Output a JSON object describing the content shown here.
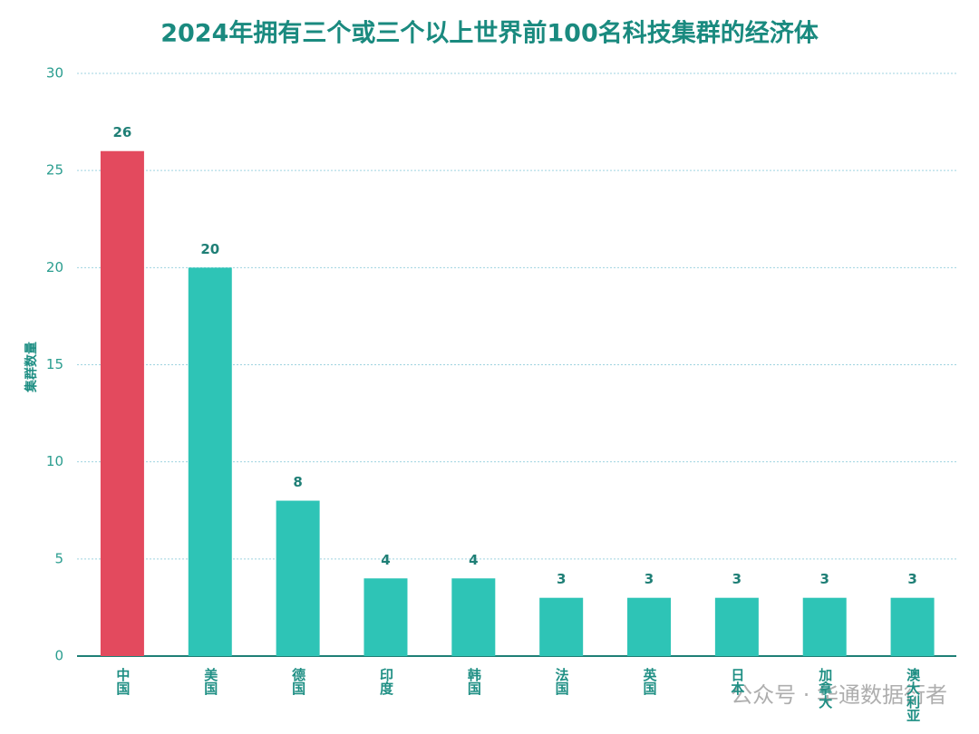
{
  "chart_data": {
    "type": "bar",
    "title": "2024年拥有三个或三个以上世界前100名科技集群的经济体",
    "y_label": "集群数量",
    "categories": [
      "中国",
      "美国",
      "德国",
      "印度",
      "韩国",
      "法国",
      "英国",
      "日本",
      "加拿大",
      "澳大利亚"
    ],
    "values": [
      26,
      20,
      8,
      4,
      4,
      3,
      3,
      3,
      3,
      3
    ],
    "colors": [
      "#e34a5e",
      "#2ec4b6",
      "#2ec4b6",
      "#2ec4b6",
      "#2ec4b6",
      "#2ec4b6",
      "#2ec4b6",
      "#2ec4b6",
      "#2ec4b6",
      "#2ec4b6"
    ],
    "ylim": [
      0,
      30
    ],
    "yticks": [
      0,
      5,
      10,
      15,
      20,
      25,
      30
    ],
    "grid": true
  },
  "watermark": "公众号 · 华通数据衍者"
}
